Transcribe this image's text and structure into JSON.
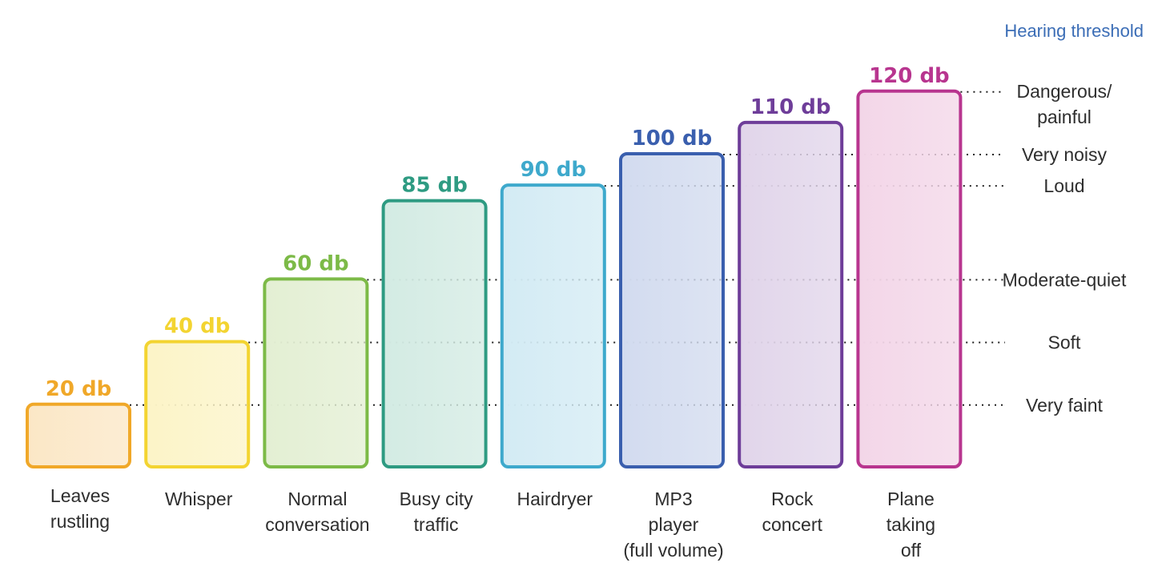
{
  "chart_data": {
    "type": "bar",
    "title": "Hearing threshold",
    "unit": "db",
    "categories": [
      [
        "Leaves",
        "rustling"
      ],
      [
        "Whisper"
      ],
      [
        "Normal",
        "conversation"
      ],
      [
        "Busy city",
        "traffic"
      ],
      [
        "Hairdryer"
      ],
      [
        "MP3",
        "player",
        "(full volume)"
      ],
      [
        "Rock",
        "concert"
      ],
      [
        "Plane",
        "taking",
        "off"
      ]
    ],
    "values": [
      20,
      40,
      60,
      85,
      90,
      100,
      110,
      120
    ],
    "value_labels": [
      "20 db",
      "40 db",
      "60 db",
      "85 db",
      "90 db",
      "100 db",
      "110 db",
      "120 db"
    ],
    "colors": [
      "#f0a829",
      "#f3d431",
      "#7cba47",
      "#2e9b82",
      "#3ea9cc",
      "#3a5fae",
      "#6e3d99",
      "#b8358f"
    ],
    "fills": [
      "#fbe7c6",
      "#fcf4c7",
      "#e3efd3",
      "#d3ebe3",
      "#d3ebf4",
      "#d2dbef",
      "#e1d5ea",
      "#f3d6e8"
    ],
    "thresholds": [
      {
        "value": 120,
        "label": [
          "Dangerous/",
          "painful"
        ]
      },
      {
        "value": 100,
        "label": [
          "Very noisy"
        ]
      },
      {
        "value": 90,
        "label": [
          "Loud"
        ]
      },
      {
        "value": 60,
        "label": [
          "Moderate-quiet"
        ]
      },
      {
        "value": 40,
        "label": [
          "Soft"
        ]
      },
      {
        "value": 20,
        "label": [
          "Very faint"
        ]
      }
    ],
    "xlabel": "",
    "ylabel": "",
    "ylim": [
      0,
      120
    ]
  }
}
